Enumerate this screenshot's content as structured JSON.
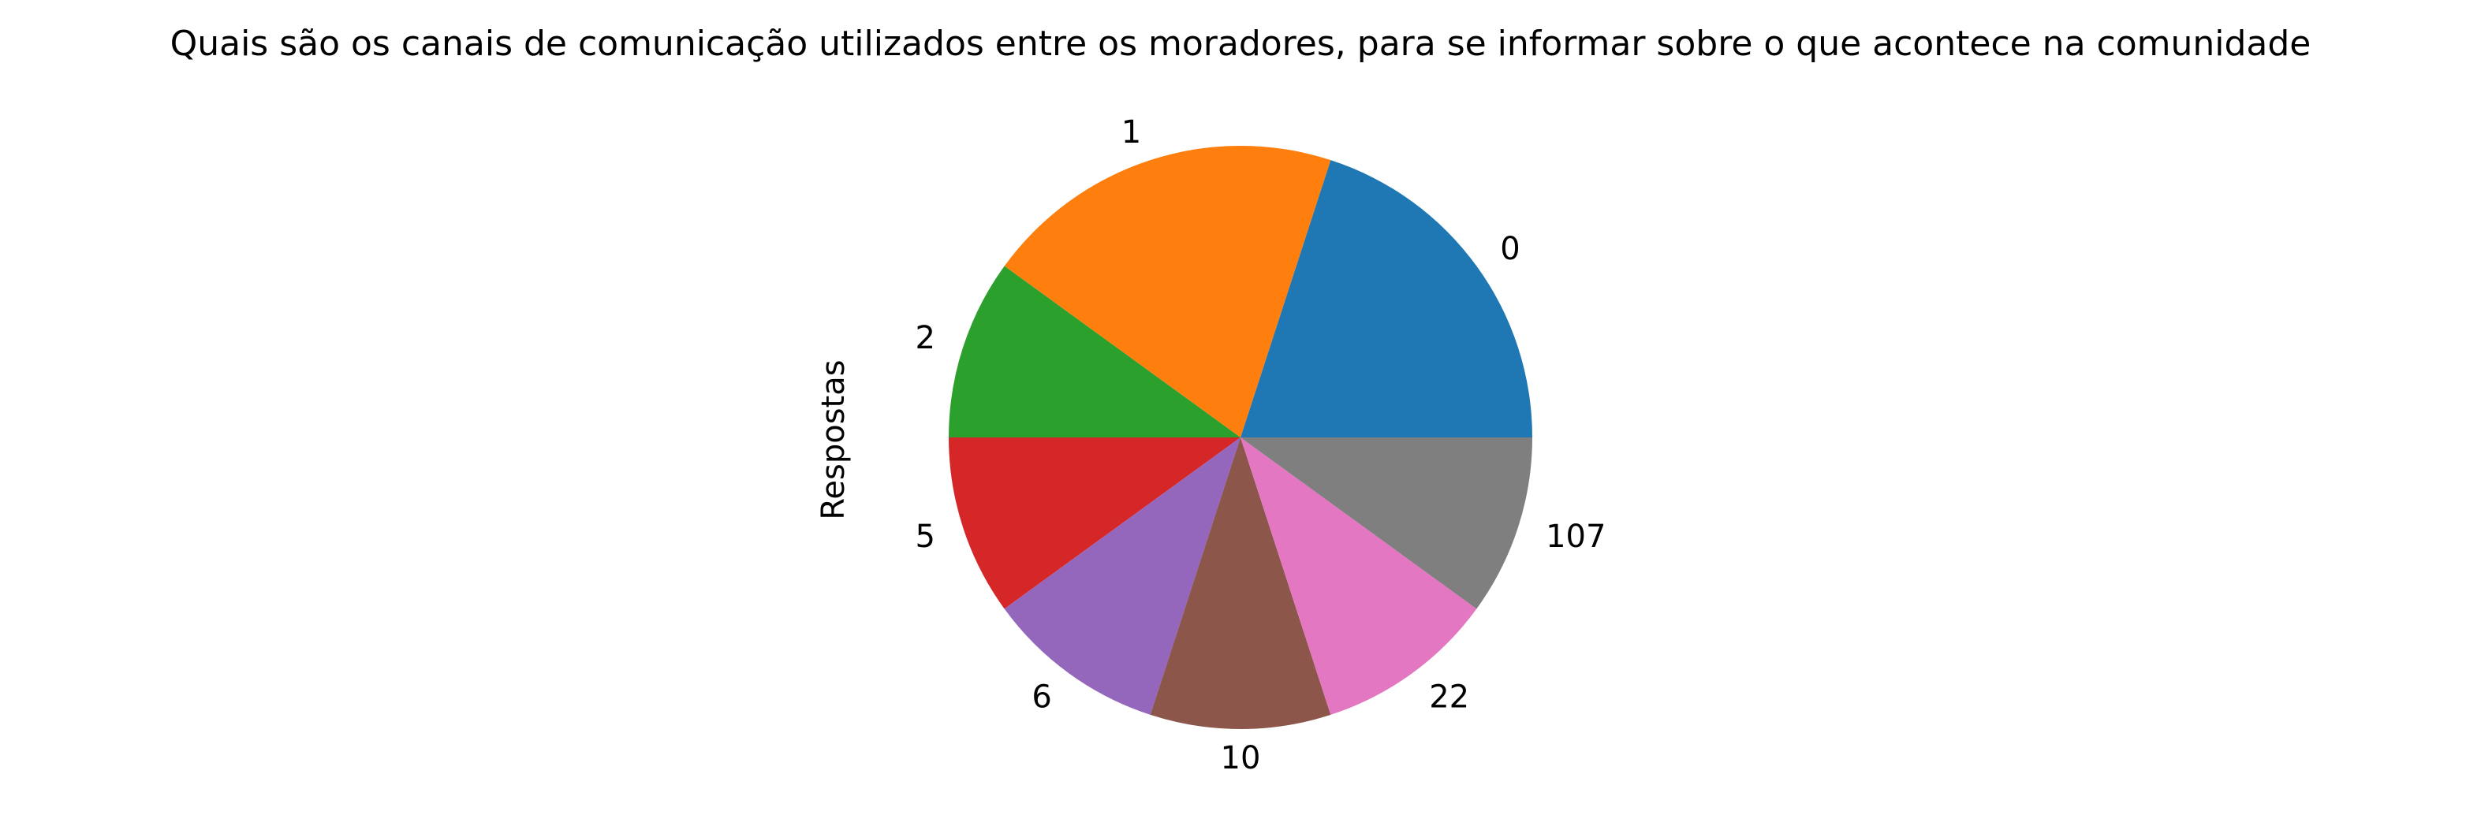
{
  "chart_data": {
    "type": "pie",
    "title": "Quais são os canais de comunicação utilizados entre os moradores, para se informar sobre o que acontece na comunidade",
    "ylabel": "Respostas",
    "categories": [
      "0",
      "1",
      "2",
      "5",
      "6",
      "10",
      "22",
      "107"
    ],
    "values": [
      2,
      2,
      1,
      1,
      1,
      1,
      1,
      1
    ],
    "colors": [
      "#1f77b4",
      "#ff7f0e",
      "#2ca02c",
      "#d62728",
      "#9467bd",
      "#8c564b",
      "#e377c2",
      "#7f7f7f"
    ],
    "legend": "none"
  }
}
